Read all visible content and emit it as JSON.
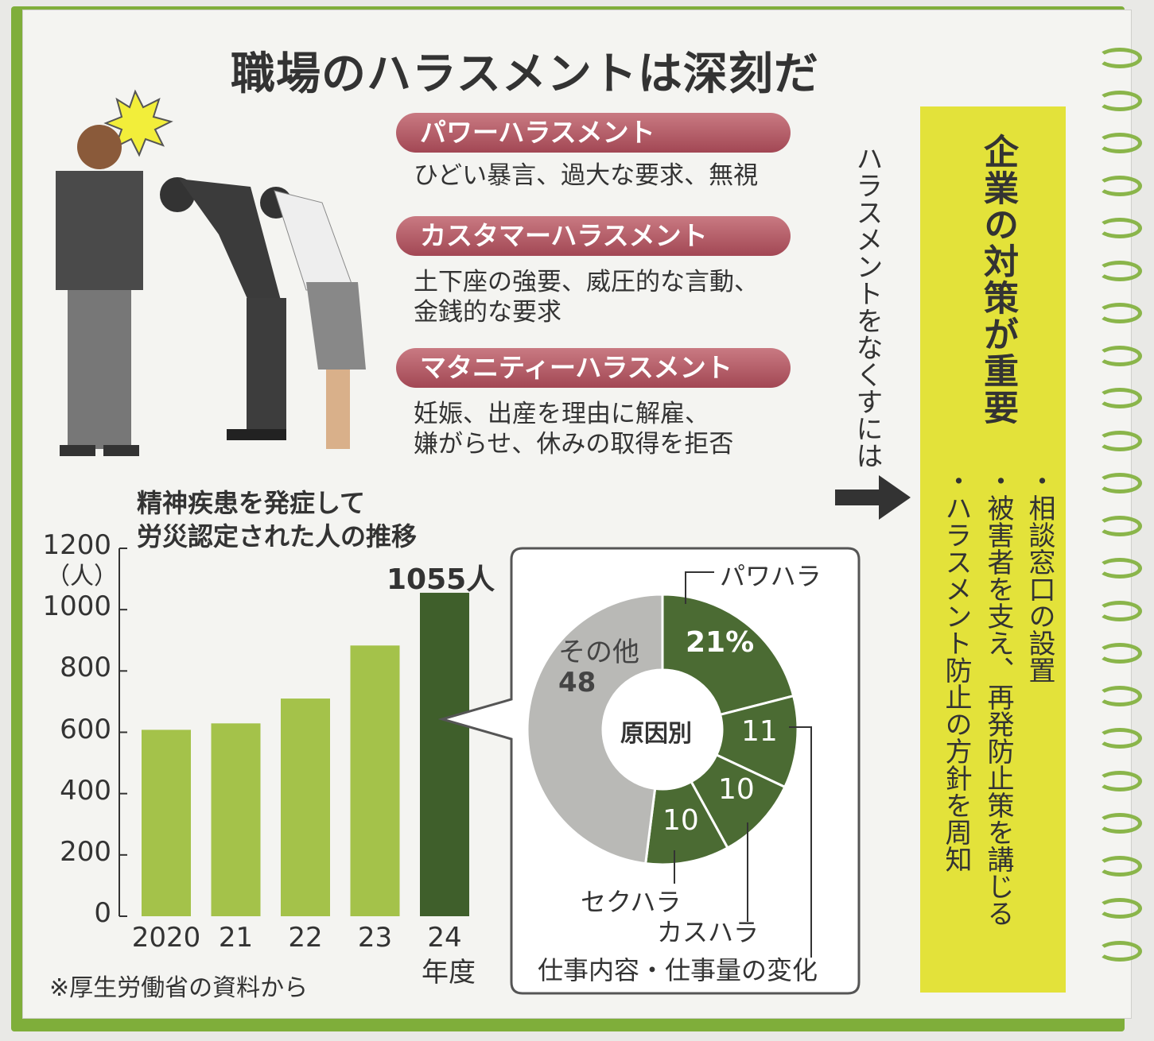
{
  "title": "職場のハラスメントは深刻だ",
  "harassments": [
    {
      "label": "パワーハラスメント",
      "desc": [
        "ひどい暴言、過大な要求、無視"
      ]
    },
    {
      "label": "カスタマーハラスメント",
      "desc": [
        "土下座の強要、威圧的な言動、",
        "金銭的な要求"
      ]
    },
    {
      "label": "マタニティーハラスメント",
      "desc": [
        "妊娠、出産を理由に解雇、",
        "嫌がらせ、休みの取得を拒否"
      ]
    }
  ],
  "arrow_text": "ハラスメントをなくすには",
  "measures": {
    "heading": "企業の対策が重要",
    "items": [
      "・相談窓口の設置",
      "・被害者を支え、再発防止策を講じる",
      "・ハラスメント防止の方針を周知"
    ]
  },
  "colors": {
    "bar": "#a4c24a",
    "bar_highlight": "#3f5f2b",
    "donut_green": "#4b6b33",
    "donut_other": "#b9b9b6",
    "accent_pill": "#b45562",
    "panel": "#e3e23a"
  },
  "chart_data": [
    {
      "type": "bar",
      "title": "精神疾患を発症して労災認定された人の推移",
      "title_lines": [
        "精神疾患を発症して",
        "労災認定された人の推移"
      ],
      "ylabel": "（人）",
      "xlabel": "年度",
      "categories": [
        "2020",
        "21",
        "22",
        "23",
        "24"
      ],
      "values": [
        608,
        629,
        710,
        883,
        1055
      ],
      "highlight_label": "1055人",
      "ylim": [
        0,
        1200
      ],
      "yticks": [
        "0",
        "200",
        "400",
        "600",
        "800",
        "1000",
        "1200"
      ],
      "source": "※厚生労働省の資料から"
    },
    {
      "type": "pie",
      "title": "原因別",
      "slices": [
        {
          "label": "パワハラ",
          "value": 21,
          "display": "21%"
        },
        {
          "label": "仕事内容・仕事量の変化",
          "value": 11,
          "display": "11"
        },
        {
          "label": "カスハラ",
          "value": 10,
          "display": "10"
        },
        {
          "label": "セクハラ",
          "value": 10,
          "display": "10"
        },
        {
          "label": "その他",
          "value": 48,
          "display": "48"
        }
      ]
    }
  ]
}
